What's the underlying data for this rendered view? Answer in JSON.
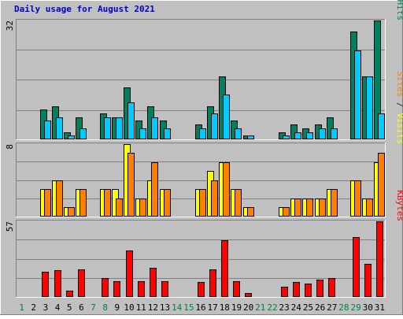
{
  "chart_data": {
    "type": "bar",
    "title": "Daily usage for August 2021",
    "categories": [
      "1",
      "2",
      "3",
      "4",
      "5",
      "6",
      "7",
      "8",
      "9",
      "10",
      "11",
      "12",
      "13",
      "14",
      "15",
      "16",
      "17",
      "18",
      "19",
      "20",
      "21",
      "22",
      "23",
      "24",
      "25",
      "26",
      "27",
      "28",
      "29",
      "30",
      "31"
    ],
    "weekend_days": [
      "1",
      "7",
      "8",
      "14",
      "15",
      "21",
      "22",
      "28",
      "29"
    ],
    "panels": [
      {
        "id": "hits-files-pages",
        "scale_label": "32",
        "ylim": [
          0,
          32
        ],
        "grid": true,
        "label_parts": [
          {
            "text": "Pages",
            "color": "#00ccff"
          },
          {
            "text": " / ",
            "color": "#333333"
          },
          {
            "text": "Files",
            "color": "#0044cc"
          },
          {
            "text": " / ",
            "color": "#333333"
          },
          {
            "text": "Hits",
            "color": "#008060"
          }
        ],
        "series": [
          {
            "name": "Hits",
            "color": "#008060",
            "values": [
              0,
              0,
              8,
              9,
              2,
              6,
              0,
              7,
              6,
              14,
              5,
              9,
              5,
              0,
              0,
              4,
              9,
              17,
              5,
              1,
              0,
              0,
              2,
              4,
              3,
              4,
              6,
              0,
              29,
              17,
              32
            ]
          },
          {
            "name": "Files",
            "color": "#00ccff",
            "values": [
              0,
              0,
              5,
              6,
              1,
              3,
              0,
              6,
              6,
              10,
              3,
              6,
              3,
              0,
              0,
              3,
              7,
              12,
              3,
              1,
              0,
              0,
              1,
              2,
              2,
              3,
              3,
              0,
              24,
              17,
              7
            ]
          }
        ]
      },
      {
        "id": "visits-sites",
        "scale_label": "8",
        "ylim": [
          0,
          8
        ],
        "grid": true,
        "label_parts": [
          {
            "text": "Sites",
            "color": "#ff8000"
          },
          {
            "text": " / ",
            "color": "#333333"
          },
          {
            "text": "Visits",
            "color": "#ffff00"
          }
        ],
        "series": [
          {
            "name": "Visits",
            "color": "#ffff00",
            "values": [
              0,
              0,
              3,
              4,
              1,
              3,
              0,
              3,
              3,
              8,
              2,
              4,
              3,
              0,
              0,
              3,
              5,
              6,
              3,
              1,
              0,
              0,
              1,
              2,
              2,
              2,
              3,
              0,
              4,
              2,
              6
            ]
          },
          {
            "name": "Sites",
            "color": "#ff8000",
            "values": [
              0,
              0,
              3,
              4,
              1,
              3,
              0,
              3,
              2,
              7,
              2,
              6,
              3,
              0,
              0,
              3,
              4,
              6,
              3,
              1,
              0,
              0,
              1,
              2,
              2,
              2,
              3,
              0,
              4,
              2,
              7
            ]
          }
        ]
      },
      {
        "id": "kbytes",
        "scale_label": "57",
        "ylim": [
          0,
          57
        ],
        "grid": true,
        "label_parts": [
          {
            "text": "KBytes",
            "color": "#ff0000"
          }
        ],
        "series": [
          {
            "name": "KBytes",
            "color": "#ff0000",
            "values": [
              0,
              0,
              19,
              20,
              5,
              21,
              0,
              14,
              12,
              35,
              12,
              22,
              12,
              0,
              0,
              11,
              21,
              43,
              12,
              3,
              0,
              0,
              8,
              11,
              10,
              13,
              14,
              0,
              45,
              25,
              57
            ]
          }
        ]
      }
    ]
  }
}
